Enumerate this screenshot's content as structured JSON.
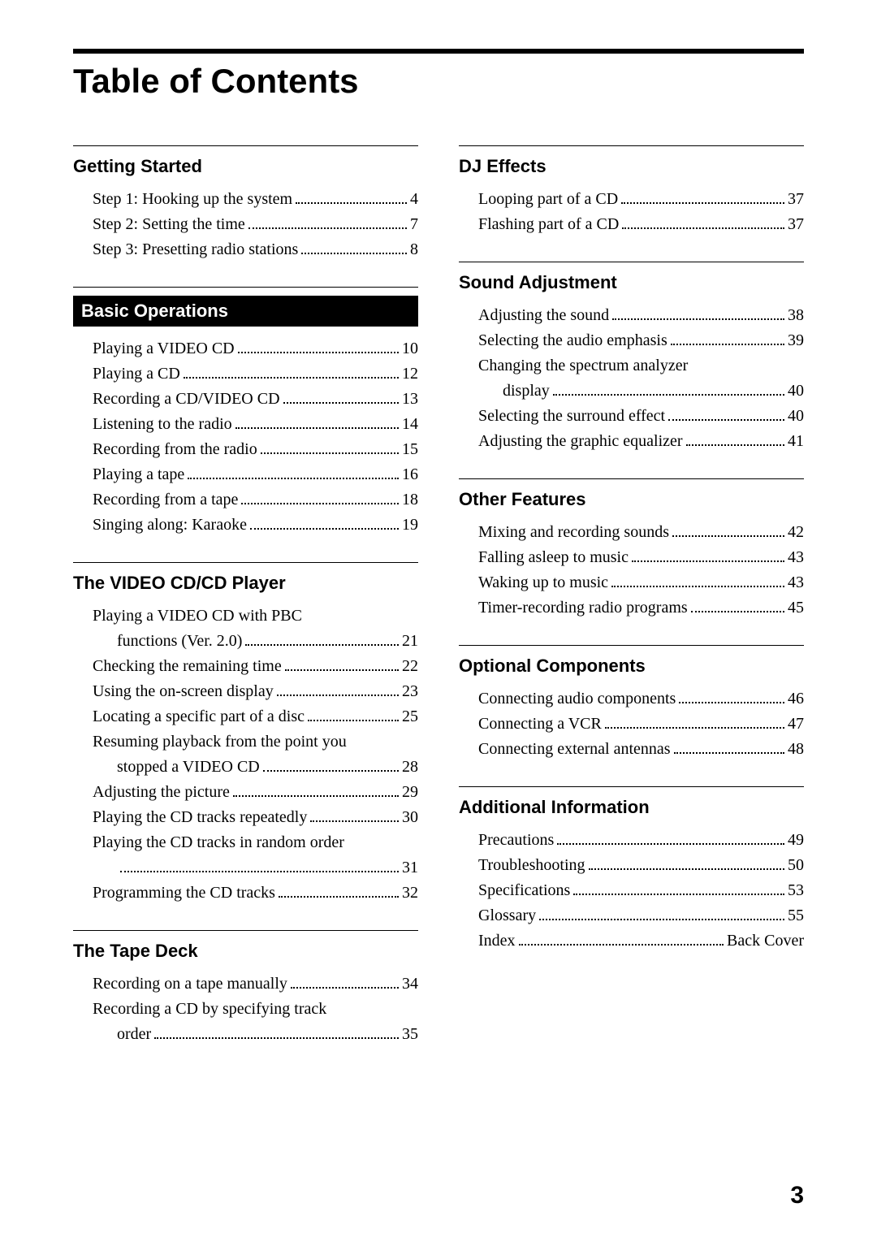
{
  "title": "Table of Contents",
  "page_number": "3",
  "columns": [
    [
      {
        "header": "Getting Started",
        "inverted": false,
        "entries": [
          {
            "lines": [
              "Step 1:  Hooking up the system"
            ],
            "page": "4"
          },
          {
            "lines": [
              "Step 2:  Setting the time"
            ],
            "page": "7"
          },
          {
            "lines": [
              "Step 3:  Presetting radio stations"
            ],
            "page": "8"
          }
        ]
      },
      {
        "header": "Basic Operations",
        "inverted": true,
        "entries": [
          {
            "lines": [
              "Playing a VIDEO CD"
            ],
            "page": "10"
          },
          {
            "lines": [
              "Playing a CD"
            ],
            "page": "12"
          },
          {
            "lines": [
              "Recording a CD/VIDEO CD"
            ],
            "page": "13"
          },
          {
            "lines": [
              "Listening to the radio"
            ],
            "page": "14"
          },
          {
            "lines": [
              "Recording from the radio"
            ],
            "page": "15"
          },
          {
            "lines": [
              "Playing a tape"
            ],
            "page": "16"
          },
          {
            "lines": [
              "Recording from a tape"
            ],
            "page": "18"
          },
          {
            "lines": [
              "Singing along:  Karaoke"
            ],
            "page": "19"
          }
        ]
      },
      {
        "header": "The VIDEO CD/CD Player",
        "inverted": false,
        "entries": [
          {
            "lines": [
              "Playing a VIDEO CD with PBC",
              "functions (Ver. 2.0)"
            ],
            "page": "21"
          },
          {
            "lines": [
              "Checking the remaining time"
            ],
            "page": "22"
          },
          {
            "lines": [
              "Using the on-screen display"
            ],
            "page": "23"
          },
          {
            "lines": [
              "Locating a specific part of a disc"
            ],
            "page": "25"
          },
          {
            "lines": [
              "Resuming playback from the point you",
              "stopped a VIDEO CD"
            ],
            "page": "28"
          },
          {
            "lines": [
              "Adjusting the picture"
            ],
            "page": "29"
          },
          {
            "lines": [
              "Playing the CD tracks repeatedly"
            ],
            "page": "30"
          },
          {
            "lines": [
              "Playing the CD tracks in random order",
              ""
            ],
            "page": "31"
          },
          {
            "lines": [
              "Programming the CD tracks"
            ],
            "page": "32"
          }
        ]
      },
      {
        "header": "The Tape Deck",
        "inverted": false,
        "entries": [
          {
            "lines": [
              "Recording on a tape manually"
            ],
            "page": "34"
          },
          {
            "lines": [
              "Recording a CD by specifying track",
              "order"
            ],
            "page": "35"
          }
        ]
      }
    ],
    [
      {
        "header": "DJ Effects",
        "inverted": false,
        "entries": [
          {
            "lines": [
              "Looping part of a CD"
            ],
            "page": "37"
          },
          {
            "lines": [
              "Flashing part of a CD"
            ],
            "page": "37"
          }
        ]
      },
      {
        "header": "Sound Adjustment",
        "inverted": false,
        "entries": [
          {
            "lines": [
              "Adjusting the sound"
            ],
            "page": "38"
          },
          {
            "lines": [
              "Selecting the audio emphasis"
            ],
            "page": "39"
          },
          {
            "lines": [
              "Changing the spectrum analyzer",
              "display"
            ],
            "page": "40"
          },
          {
            "lines": [
              "Selecting the surround effect"
            ],
            "page": "40"
          },
          {
            "lines": [
              "Adjusting the graphic equalizer"
            ],
            "page": "41"
          }
        ]
      },
      {
        "header": "Other Features",
        "inverted": false,
        "entries": [
          {
            "lines": [
              "Mixing and recording sounds"
            ],
            "page": "42"
          },
          {
            "lines": [
              "Falling asleep to music"
            ],
            "page": "43"
          },
          {
            "lines": [
              "Waking up to music"
            ],
            "page": "43"
          },
          {
            "lines": [
              "Timer-recording radio programs"
            ],
            "page": "45"
          }
        ]
      },
      {
        "header": "Optional Components",
        "inverted": false,
        "entries": [
          {
            "lines": [
              "Connecting audio components"
            ],
            "page": "46"
          },
          {
            "lines": [
              "Connecting a VCR"
            ],
            "page": "47"
          },
          {
            "lines": [
              "Connecting external antennas"
            ],
            "page": "48"
          }
        ]
      },
      {
        "header": "Additional Information",
        "inverted": false,
        "entries": [
          {
            "lines": [
              "Precautions"
            ],
            "page": "49"
          },
          {
            "lines": [
              "Troubleshooting"
            ],
            "page": "50"
          },
          {
            "lines": [
              "Specifications"
            ],
            "page": "53"
          },
          {
            "lines": [
              "Glossary"
            ],
            "page": "55"
          },
          {
            "lines": [
              "Index"
            ],
            "page": "Back Cover"
          }
        ]
      }
    ]
  ]
}
